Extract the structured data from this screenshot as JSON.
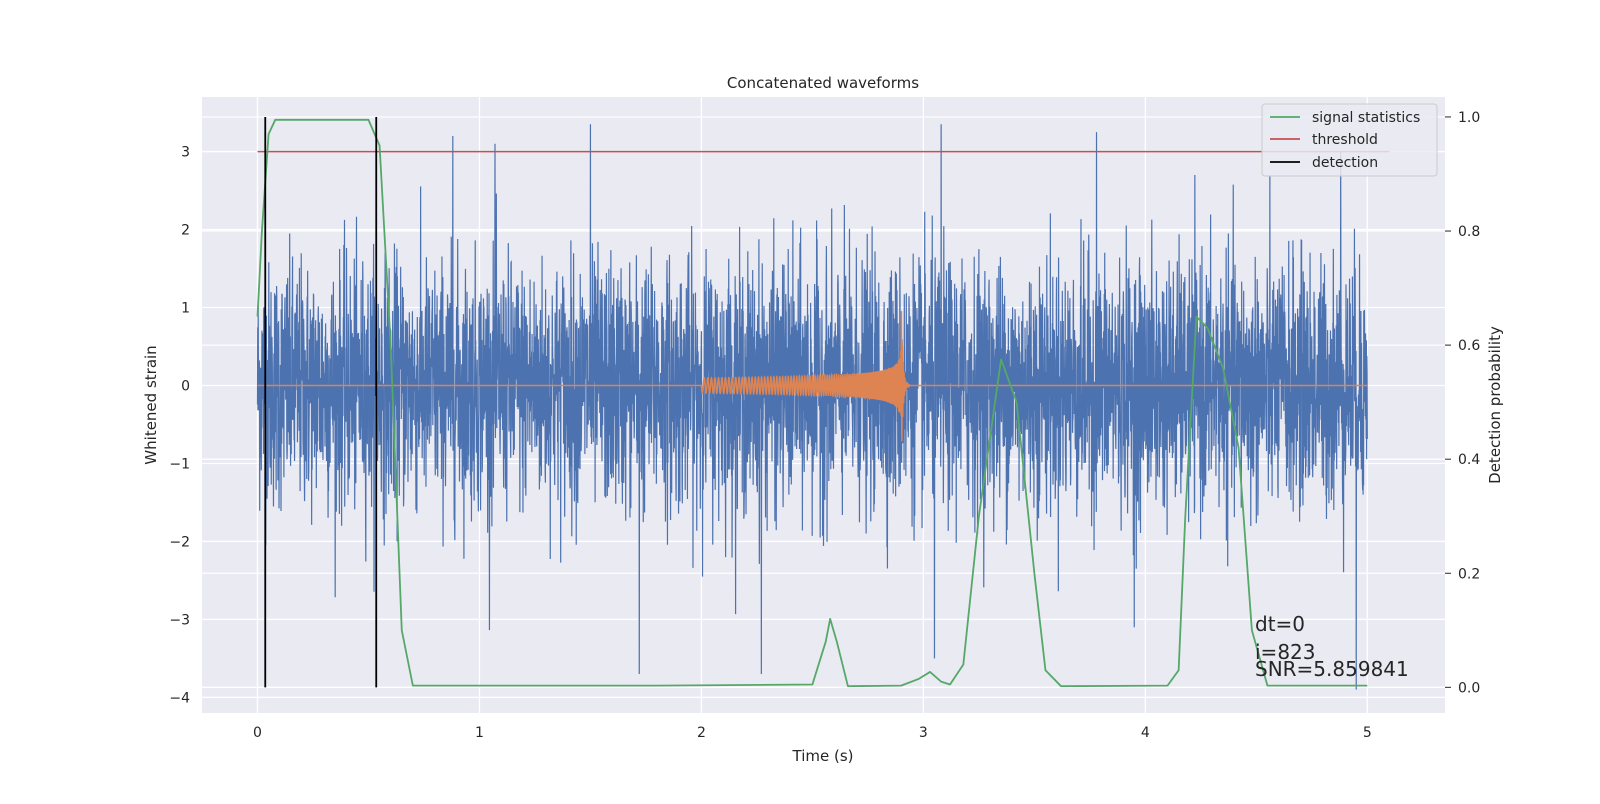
{
  "chart_data": {
    "type": "line",
    "title": "Concatenated waveforms",
    "xlabel": "Time (s)",
    "ylabel": "Whitened strain",
    "y2label": "Detection probability",
    "xlim": [
      -0.25,
      5.35
    ],
    "ylim": [
      -4.2,
      3.7
    ],
    "y2lim": [
      -0.045,
      1.035
    ],
    "xticks": [
      0,
      1,
      2,
      3,
      4,
      5
    ],
    "xtick_labels": [
      "0",
      "1",
      "2",
      "3",
      "4",
      "5"
    ],
    "yticks": [
      -4,
      -3,
      -2,
      -1,
      0,
      1,
      2,
      3
    ],
    "ytick_labels": [
      "−4",
      "−3",
      "−2",
      "−1",
      "0",
      "1",
      "2",
      "3"
    ],
    "y2ticks": [
      0.0,
      0.2,
      0.4,
      0.6,
      0.8,
      1.0
    ],
    "y2tick_labels": [
      "0.0",
      "0.2",
      "0.4",
      "0.6",
      "0.8",
      "1.0"
    ],
    "grid": true,
    "legend_position": "top-right",
    "legend": [
      "signal statistics",
      "threshold",
      "detection"
    ],
    "series": [
      {
        "name": "whitened strain noise",
        "axis": "left",
        "color": "#4c72b0",
        "x_range": [
          0,
          5
        ],
        "approx_amplitude_range": [
          -3.9,
          3.35
        ],
        "notable_spikes": [
          {
            "x": 0.88,
            "y": 3.2
          },
          {
            "x": 1.07,
            "y": 3.1
          },
          {
            "x": 1.5,
            "y": 3.35
          },
          {
            "x": 3.08,
            "y": 3.35
          },
          {
            "x": 3.78,
            "y": 3.25
          },
          {
            "x": 4.88,
            "y": 3.0
          },
          {
            "x": 1.72,
            "y": -3.7
          },
          {
            "x": 2.27,
            "y": -3.7
          },
          {
            "x": 3.05,
            "y": -3.5
          },
          {
            "x": 3.95,
            "y": -3.1
          },
          {
            "x": 4.95,
            "y": -3.9
          }
        ]
      },
      {
        "name": "injected signal",
        "axis": "left",
        "color": "#dd8452",
        "x_range": [
          0,
          5
        ],
        "chirp_start": 2.0,
        "merger_time": 2.9,
        "points": [
          [
            2.0,
            0.1
          ],
          [
            2.2,
            0.14
          ],
          [
            2.4,
            0.2
          ],
          [
            2.6,
            0.3
          ],
          [
            2.75,
            0.45
          ],
          [
            2.85,
            0.65
          ],
          [
            2.9,
            1.2
          ],
          [
            2.91,
            -0.9
          ],
          [
            2.93,
            0.05
          ]
        ]
      },
      {
        "name": "signal statistics",
        "axis": "right",
        "color": "#55a868",
        "points": [
          [
            0.0,
            0.65
          ],
          [
            0.02,
            0.8
          ],
          [
            0.05,
            0.97
          ],
          [
            0.08,
            0.995
          ],
          [
            0.5,
            0.995
          ],
          [
            0.55,
            0.95
          ],
          [
            0.6,
            0.6
          ],
          [
            0.65,
            0.1
          ],
          [
            0.7,
            0.003
          ],
          [
            1.8,
            0.003
          ],
          [
            2.5,
            0.005
          ],
          [
            2.56,
            0.08
          ],
          [
            2.58,
            0.12
          ],
          [
            2.61,
            0.08
          ],
          [
            2.66,
            0.002
          ],
          [
            2.9,
            0.003
          ],
          [
            2.98,
            0.015
          ],
          [
            3.03,
            0.027
          ],
          [
            3.08,
            0.01
          ],
          [
            3.12,
            0.005
          ],
          [
            3.18,
            0.04
          ],
          [
            3.25,
            0.3
          ],
          [
            3.35,
            0.575
          ],
          [
            3.42,
            0.5
          ],
          [
            3.5,
            0.2
          ],
          [
            3.55,
            0.03
          ],
          [
            3.62,
            0.002
          ],
          [
            4.1,
            0.003
          ],
          [
            4.15,
            0.03
          ],
          [
            4.18,
            0.3
          ],
          [
            4.23,
            0.65
          ],
          [
            4.28,
            0.63
          ],
          [
            4.35,
            0.56
          ],
          [
            4.42,
            0.42
          ],
          [
            4.48,
            0.1
          ],
          [
            4.55,
            0.003
          ],
          [
            5.0,
            0.003
          ]
        ]
      },
      {
        "name": "threshold",
        "axis": "left",
        "color": "#c44e52",
        "points": [
          [
            0.0,
            3.0
          ],
          [
            5.1,
            3.0
          ]
        ]
      },
      {
        "name": "detection",
        "axis": "right",
        "color": "#000000",
        "vertical_lines_x": [
          0.035,
          0.535
        ],
        "y_range": [
          0.0,
          1.0
        ]
      }
    ],
    "annotations": [
      "dt=0",
      "i=823",
      "SNR=5.859841"
    ]
  }
}
